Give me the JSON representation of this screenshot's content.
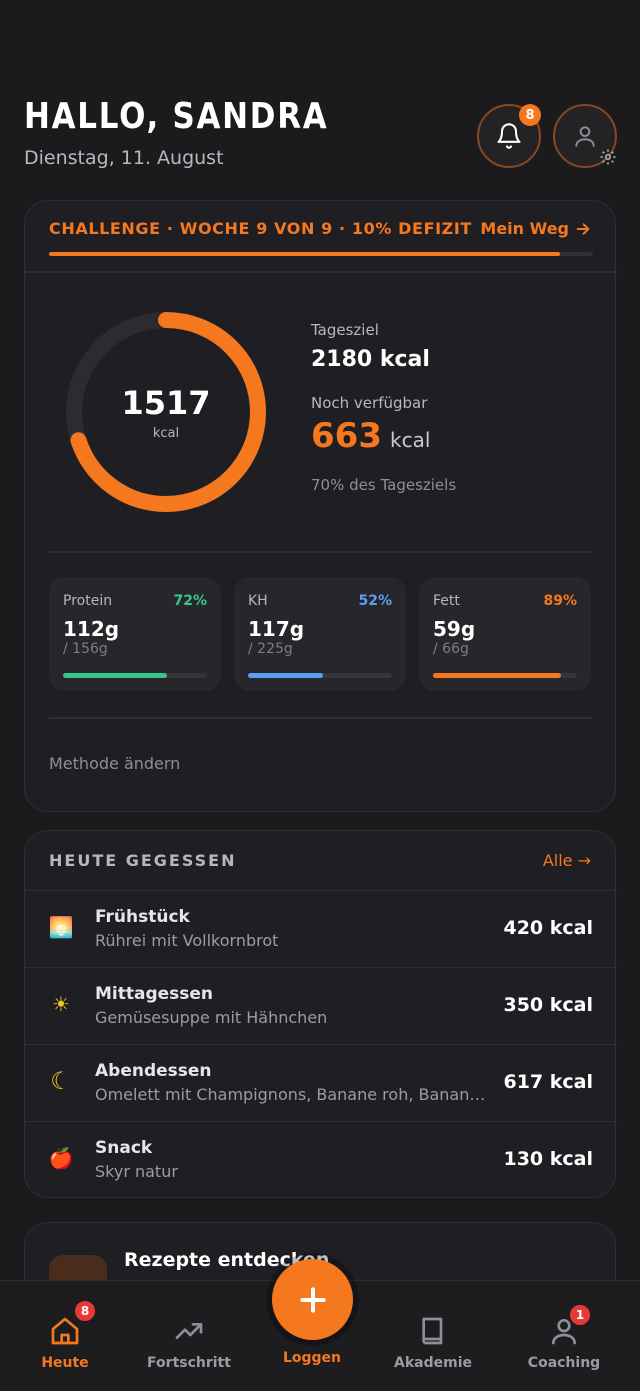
{
  "header": {
    "greeting": "HALLO, SANDRA",
    "date": "Dienstag, 11. August",
    "notification_count": "8"
  },
  "challenge": {
    "title": "CHALLENGE · WOCHE 9 VON 9 · 10% DEFIZIT",
    "link_label": "Mein Weg",
    "progress": 0.94
  },
  "calories": {
    "consumed": "1517",
    "consumed_unit": "kcal",
    "goal_label": "Tagesziel",
    "goal_value": "2180 kcal",
    "available_label": "Noch verfügbar",
    "available_value": "663",
    "available_unit": "kcal",
    "percent_text": "70% des Tagesziels",
    "ring_fraction": 0.7
  },
  "macros": [
    {
      "name": "Protein",
      "percent": "72%",
      "value": "112g",
      "goal": "/ 156g",
      "fraction": 0.72,
      "color": "#34c98a"
    },
    {
      "name": "KH",
      "percent": "52%",
      "value": "117g",
      "goal": "/ 225g",
      "fraction": 0.52,
      "color": "#5b9df5"
    },
    {
      "name": "Fett",
      "percent": "89%",
      "value": "59g",
      "goal": "/ 66g",
      "fraction": 0.89,
      "color": "#f5781f"
    }
  ],
  "method_label": "Methode ändern",
  "meals": {
    "title": "HEUTE GEGESSEN",
    "all_label": "Alle →",
    "items": [
      {
        "icon": "sunrise-icon",
        "glyph": "🌅",
        "name": "Frühstück",
        "desc": "Rührei mit Vollkornbrot",
        "kcal": "420 kcal"
      },
      {
        "icon": "sun-icon",
        "glyph": "☀",
        "name": "Mittagessen",
        "desc": "Gemüsesuppe mit Hähnchen",
        "kcal": "350 kcal"
      },
      {
        "icon": "moon-icon",
        "glyph": "☾",
        "name": "Abendessen",
        "desc": "Omelett mit Champignons, Banane roh, Banane roh",
        "kcal": "617 kcal"
      },
      {
        "icon": "apple-icon",
        "glyph": "🍎",
        "name": "Snack",
        "desc": "Skyr natur",
        "kcal": "130 kcal"
      }
    ]
  },
  "recipes": {
    "title": "Rezepte entdecken"
  },
  "nav": {
    "home": {
      "label": "Heute",
      "badge": "8"
    },
    "progress": {
      "label": "Fortschritt"
    },
    "log": {
      "label": "Loggen"
    },
    "academy": {
      "label": "Akademie"
    },
    "coaching": {
      "label": "Coaching",
      "badge": "1"
    }
  },
  "colors": {
    "accent": "#f5781f",
    "background": "#1b1b1e",
    "card": "#1f1f23"
  }
}
